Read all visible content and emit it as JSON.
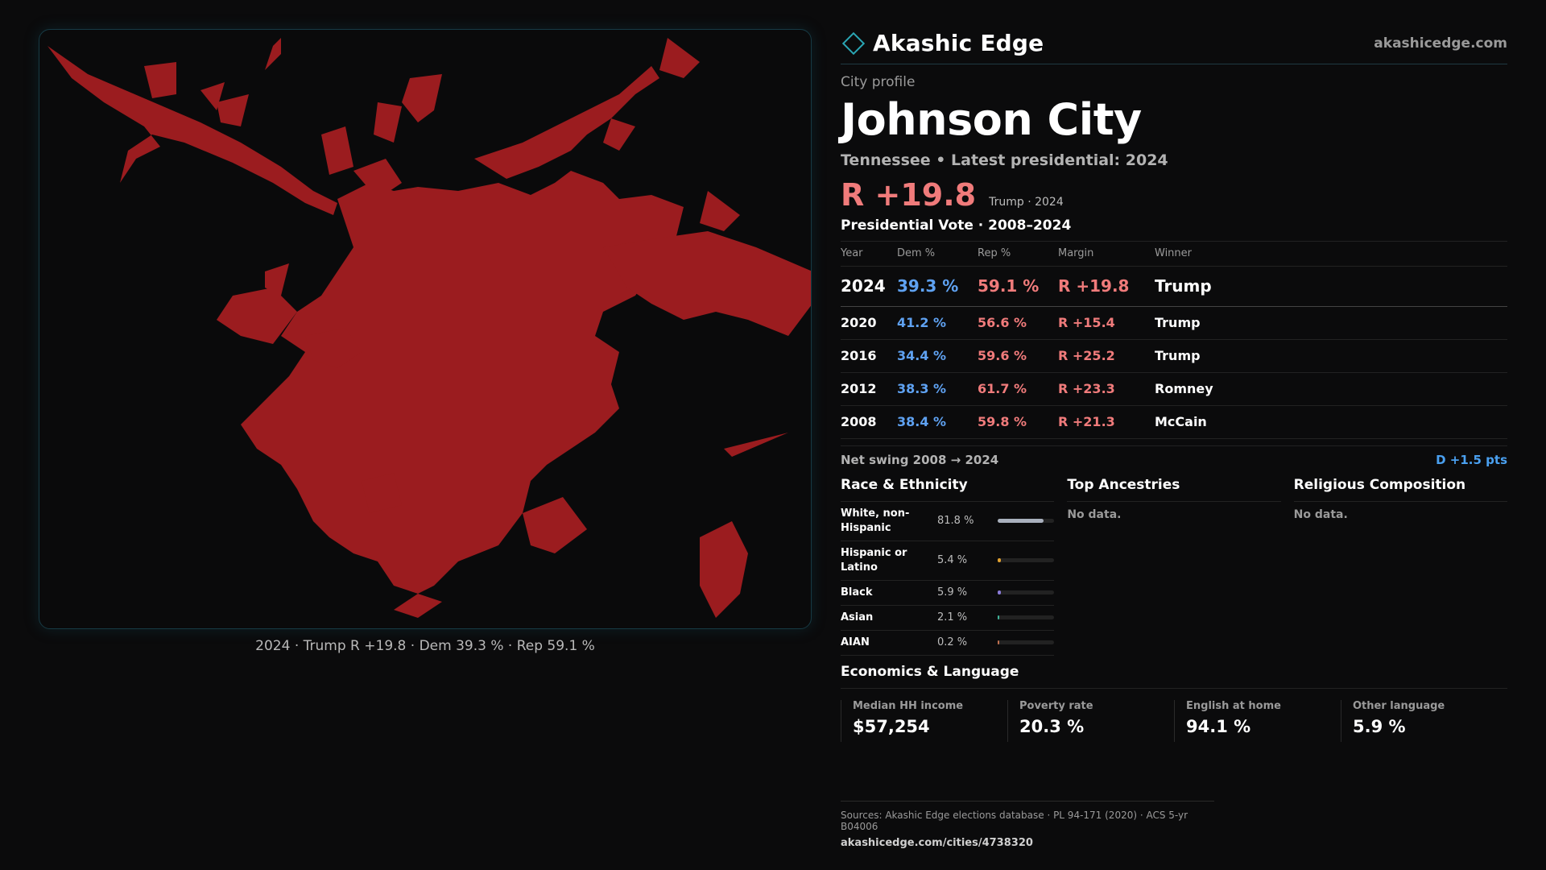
{
  "map": {
    "fill_color": "#9b1c1f",
    "caption": "2024 · Trump R +19.8 · Dem 39.3 % · Rep 59.1 %"
  },
  "header": {
    "brand": "Akashic Edge",
    "url": "akashicedge.com",
    "accent_color": "#2aa6b4"
  },
  "profile": {
    "eyebrow": "City profile",
    "city": "Johnson City",
    "subline": "Tennessee • Latest presidential: 2024",
    "margin": "R +19.8",
    "winner_line": "Trump · 2024"
  },
  "votes": {
    "title": "Presidential Vote · 2008–2024",
    "columns": [
      "Year",
      "Dem %",
      "Rep %",
      "Margin",
      "Winner"
    ],
    "rows": [
      {
        "year": "2024",
        "dem": "39.3 %",
        "rep": "59.1 %",
        "margin": "R +19.8",
        "winner": "Trump"
      },
      {
        "year": "2020",
        "dem": "41.2 %",
        "rep": "56.6 %",
        "margin": "R +15.4",
        "winner": "Trump"
      },
      {
        "year": "2016",
        "dem": "34.4 %",
        "rep": "59.6 %",
        "margin": "R +25.2",
        "winner": "Trump"
      },
      {
        "year": "2012",
        "dem": "38.3 %",
        "rep": "61.7 %",
        "margin": "R +23.3",
        "winner": "Romney"
      },
      {
        "year": "2008",
        "dem": "38.4 %",
        "rep": "59.8 %",
        "margin": "R +21.3",
        "winner": "McCain"
      }
    ],
    "swing_label": "Net swing 2008 → 2024",
    "swing_value": "D +1.5 pts"
  },
  "race": {
    "title": "Race & Ethnicity",
    "rows": [
      {
        "label": "White, non-Hispanic",
        "value": "81.8 %",
        "share": 0.818,
        "color": "#a9b0bd"
      },
      {
        "label": "Hispanic or Latino",
        "value": "5.4 %",
        "share": 0.054,
        "color": "#e0a030"
      },
      {
        "label": "Black",
        "value": "5.9 %",
        "share": 0.059,
        "color": "#8a7bd8"
      },
      {
        "label": "Asian",
        "value": "2.1 %",
        "share": 0.021,
        "color": "#3fb59a"
      },
      {
        "label": "AIAN",
        "value": "0.2 %",
        "share": 0.002,
        "color": "#c07050"
      }
    ]
  },
  "ancestries": {
    "title": "Top Ancestries",
    "empty": "No data."
  },
  "religion": {
    "title": "Religious Composition",
    "empty": "No data."
  },
  "economics": {
    "title": "Economics & Language",
    "stats": [
      {
        "label": "Median HH income",
        "value": "$57,254"
      },
      {
        "label": "Poverty rate",
        "value": "20.3 %"
      },
      {
        "label": "English at home",
        "value": "94.1 %"
      },
      {
        "label": "Other language",
        "value": "5.9 %"
      }
    ]
  },
  "footer": {
    "sources": "Sources: Akashic Edge elections database · PL 94-171 (2020) · ACS 5-yr B04006",
    "link": "akashicedge.com/cities/4738320"
  }
}
